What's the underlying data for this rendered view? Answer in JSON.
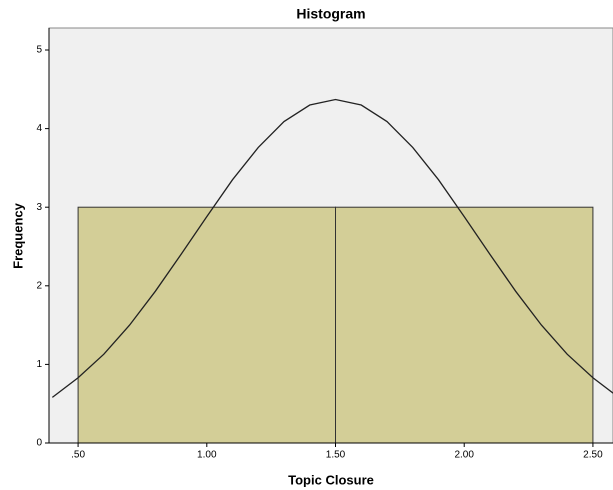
{
  "chart_data": {
    "type": "histogram",
    "title": "Histogram",
    "x_label": "Topic Closure",
    "y_label": "Frequency",
    "bins": [
      0.5,
      1.5,
      2.5
    ],
    "counts": [
      3,
      3
    ],
    "color": "#d3ce97",
    "xlim": [
      0.387,
      2.578
    ],
    "ylim": [
      0,
      5.28
    ],
    "xticks": [
      {
        "value": 0.5,
        "label": ".50"
      },
      {
        "value": 1.0,
        "label": "1.00"
      },
      {
        "value": 1.5,
        "label": "1.50"
      },
      {
        "value": 2.0,
        "label": "2.00"
      },
      {
        "value": 2.5,
        "label": "2.50"
      }
    ],
    "yticks": [
      0,
      1,
      2,
      3,
      4,
      5
    ],
    "curve": {
      "x": [
        0.4,
        0.5,
        0.6,
        0.7,
        0.8,
        0.9,
        1.0,
        1.1,
        1.2,
        1.3,
        1.4,
        1.5,
        1.6,
        1.7,
        1.8,
        1.9,
        2.0,
        2.1,
        2.2,
        2.3,
        2.4,
        2.5,
        2.6
      ],
      "y": [
        0.58,
        0.83,
        1.13,
        1.5,
        1.93,
        2.4,
        2.88,
        3.35,
        3.76,
        4.09,
        4.3,
        4.37,
        4.3,
        4.09,
        3.76,
        3.35,
        2.88,
        2.4,
        1.93,
        1.5,
        1.13,
        0.83,
        0.58
      ]
    }
  }
}
